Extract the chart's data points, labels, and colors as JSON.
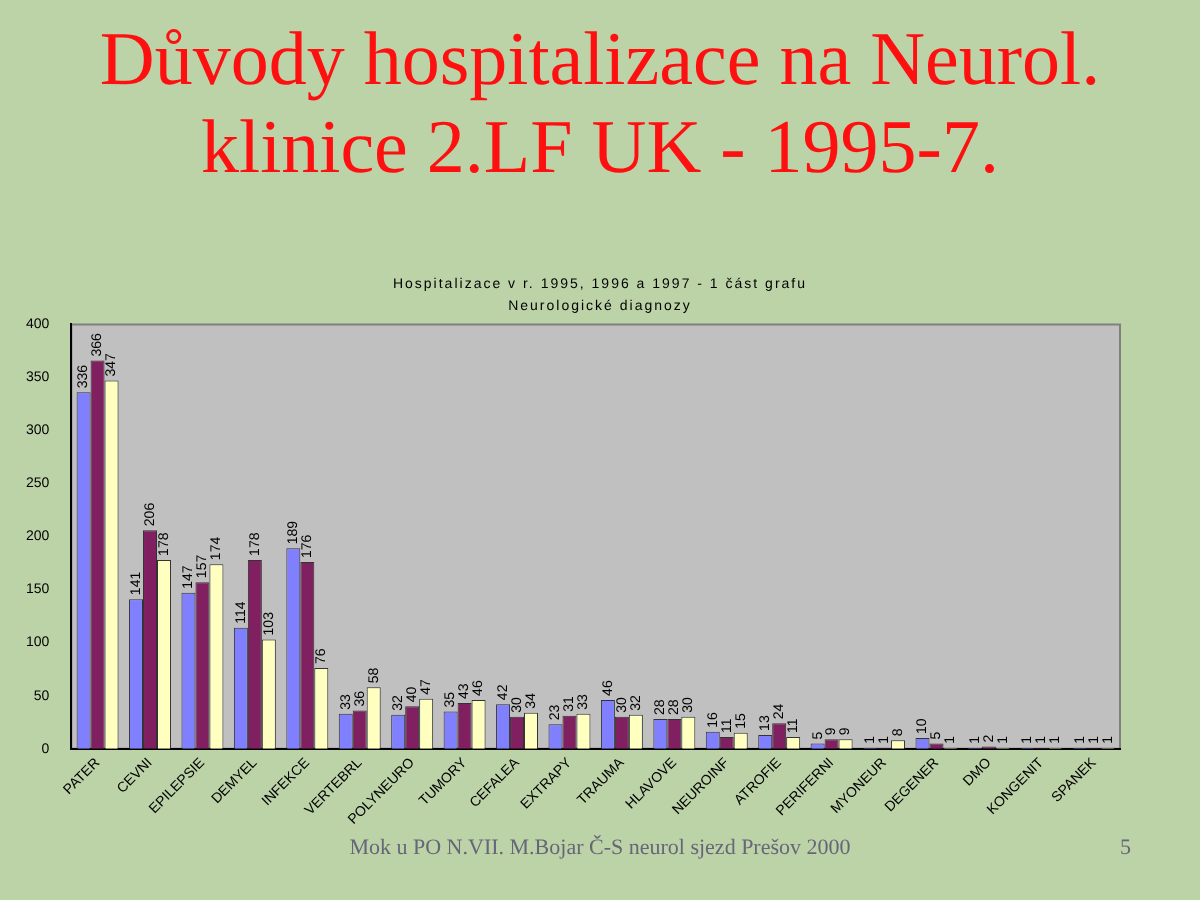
{
  "chart_data": {
    "type": "bar",
    "title": "Důvody hospitalizace na Neurol. klinice 2.LF UK - 1995-7.",
    "subtitle": "Hospitalizace v r. 1995, 1996 a 1997 - 1 část grafu",
    "annotations": [
      "Neurologické diagnozy",
      "Mok u PO N.VII. M.Bojar Č-S neurol sjezd Prešov 2000",
      "5"
    ],
    "categories": [
      "PATER",
      "CEVNI",
      "EPILEPSIE",
      "DEMYEL",
      "INFEKCE",
      "VERTEBRL",
      "POLYNEURO",
      "TUMORY",
      "CEFALEA",
      "EXTRAPY",
      "TRAUMA",
      "HLAVOVE",
      "NEUROINF",
      "ATROFIE",
      "PERIFERNI",
      "MYONEUR",
      "DEGENER",
      "DMO",
      "KONGENIT",
      "SPANEK"
    ],
    "series": [
      {
        "color": "#8080ff",
        "values": [
          336,
          141,
          147,
          114,
          189,
          33,
          32,
          35,
          42,
          23,
          46,
          28,
          16,
          13,
          5,
          1,
          10,
          1,
          1,
          1
        ]
      },
      {
        "color": "#802060",
        "values": [
          366,
          206,
          157,
          178,
          176,
          36,
          40,
          43,
          30,
          31,
          30,
          28,
          11,
          24,
          9,
          1,
          5,
          2,
          1,
          1
        ]
      },
      {
        "color": "#ffffc0",
        "values": [
          347,
          178,
          174,
          103,
          76,
          58,
          47,
          46,
          34,
          33,
          32,
          30,
          15,
          11,
          9,
          8,
          1,
          1,
          1,
          1
        ]
      }
    ],
    "ylim": [
      0,
      400
    ],
    "yticks": [
      0,
      50,
      100,
      150,
      200,
      250,
      300,
      350,
      400
    ],
    "grid": false,
    "legend": false,
    "data_labels": true
  }
}
